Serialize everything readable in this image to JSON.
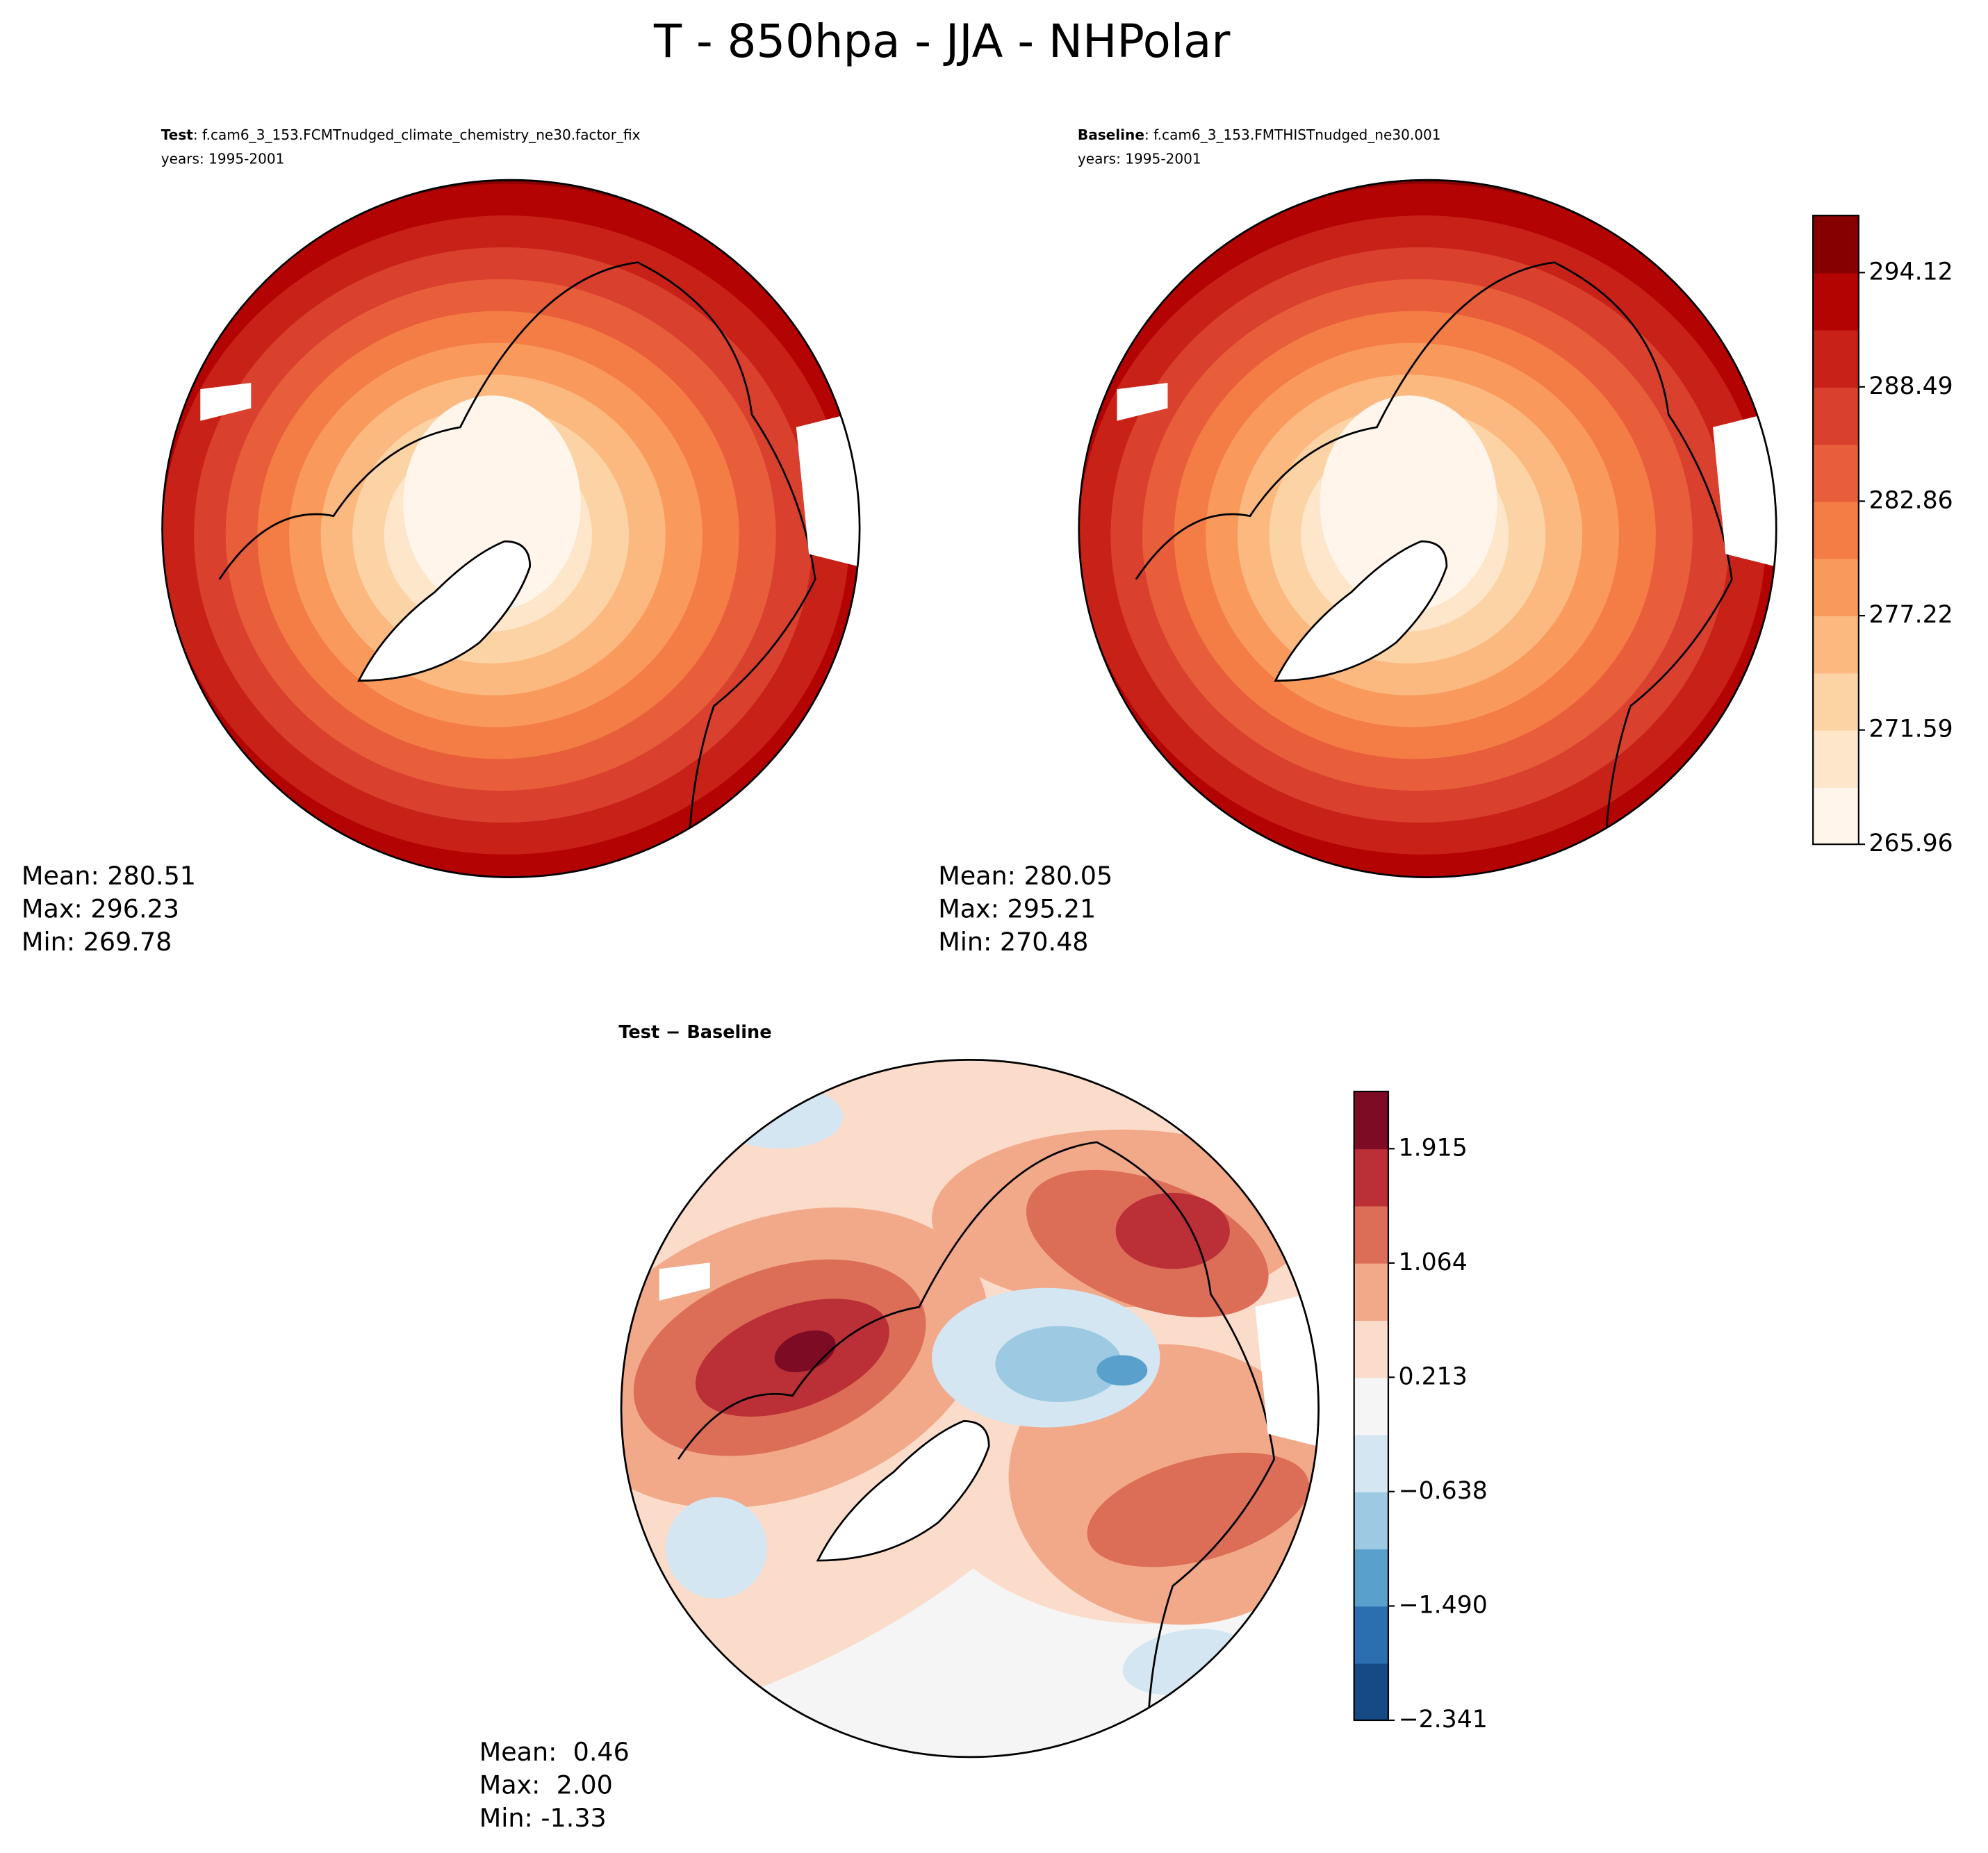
{
  "title": "T - 850hpa - JJA - NHPolar",
  "panels": [
    {
      "label": "Test",
      "case": ": f.cam6_3_153.FCMTnudged_climate_chemistry_ne30.factor_fix",
      "years": "years: 1995-2001",
      "stats": [
        "Mean: 280.51",
        "Max: 296.23",
        "Min: 269.78"
      ]
    },
    {
      "label": "Baseline",
      "case": ": f.cam6_3_153.FMTHISTnudged_ne30.001",
      "years": "years: 1995-2001",
      "stats": [
        "Mean: 280.05",
        "Max: 295.21",
        "Min: 270.48"
      ]
    },
    {
      "label": "Test − Baseline",
      "stats": [
        "Mean:  0.46",
        "Max:  2.00",
        "Min: -1.33"
      ]
    }
  ],
  "colorbars": [
    {
      "lim": [
        265.96,
        296.93
      ],
      "ticks": [
        265.96,
        271.59,
        277.22,
        282.86,
        288.49,
        294.12
      ],
      "colors": [
        "#fff5eb",
        "#fde6c9",
        "#fcd3a4",
        "#fbb980",
        "#f99a5c",
        "#f47c45",
        "#e85d3a",
        "#d9402d",
        "#c82218",
        "#b30303",
        "#870000"
      ]
    },
    {
      "lim": [
        -2.341,
        2.341
      ],
      "ticks": [
        {
          "value": -2.341,
          "label": "−2.341"
        },
        {
          "value": -1.49,
          "label": "−1.490"
        },
        {
          "value": -0.638,
          "label": "−0.638"
        },
        0.213,
        1.064,
        1.915
      ],
      "colors": [
        "#164a85",
        "#2c6fb0",
        "#5aa0cc",
        "#9dcae2",
        "#d4e6f1",
        "#f5f5f5",
        "#fbdccb",
        "#f2a98a",
        "#dc6e57",
        "#bb2f36",
        "#7d0b24"
      ]
    }
  ]
}
